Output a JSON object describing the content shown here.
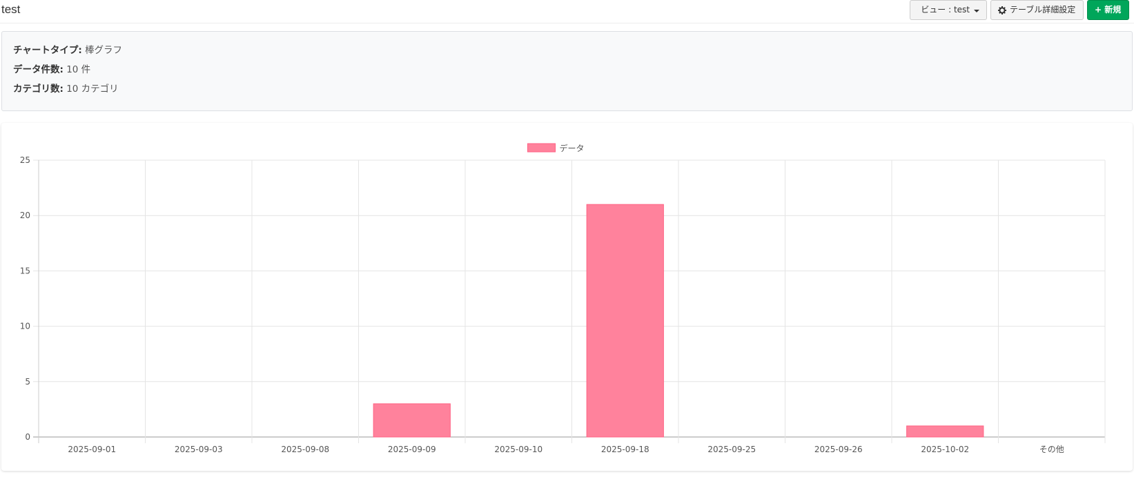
{
  "header": {
    "title": "test",
    "view_button_label": "ビュー : test",
    "settings_button_label": "テーブル詳細設定",
    "new_button_label": "+ 新規"
  },
  "info": {
    "chart_type_label": "チャートタイプ:",
    "chart_type_value": "棒グラフ",
    "data_count_label": "データ件数:",
    "data_count_value": "10 件",
    "category_count_label": "カテゴリ数:",
    "category_count_value": "10 カテゴリ"
  },
  "colors": {
    "bar_fill": "#ff829c",
    "bar_stroke": "#ff6384",
    "new_button": "#00a65a"
  },
  "chart_data": {
    "type": "bar",
    "categories": [
      "2025-09-01",
      "2025-09-03",
      "2025-09-08",
      "2025-09-09",
      "2025-09-10",
      "2025-09-18",
      "2025-09-25",
      "2025-09-26",
      "2025-10-02",
      "その他"
    ],
    "series": [
      {
        "name": "データ",
        "values": [
          0,
          0,
          0,
          3,
          0,
          21,
          0,
          0,
          1,
          0
        ]
      }
    ],
    "ylim": [
      0,
      25
    ],
    "yticks": [
      0,
      5,
      10,
      15,
      20,
      25
    ],
    "grid": true,
    "legend": "top-center"
  }
}
